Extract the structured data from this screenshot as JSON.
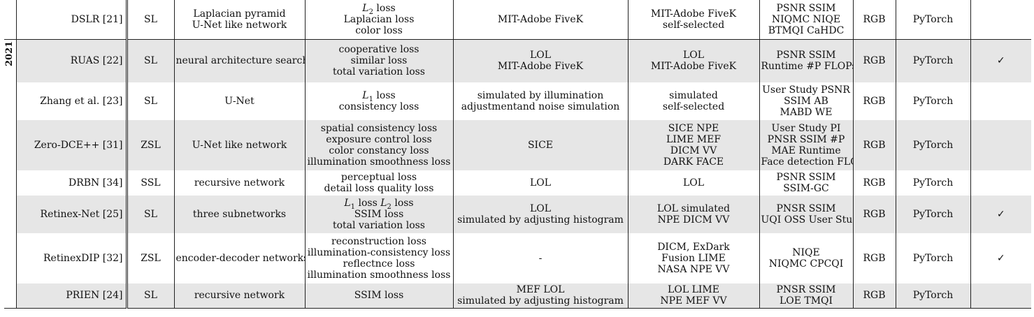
{
  "table": {
    "year_label": "2021",
    "rows": [
      {
        "method": "DSLR [21]",
        "type": "SL",
        "arch": [
          "Laplacian pyramid",
          "U-Net like network"
        ],
        "loss": [
          "L2 loss",
          "Laplacian loss",
          "color loss"
        ],
        "train": [
          "MIT-Adobe FiveK"
        ],
        "test": [
          "MIT-Adobe FiveK",
          "self-selected"
        ],
        "metrics": [
          "PSNR SSIM",
          "NIQMC NIQE",
          "BTMQI CaHDC"
        ],
        "format": "RGB",
        "platform": "PyTorch",
        "check": "",
        "shaded": false
      },
      {
        "method": "RUAS [22]",
        "type": "SL",
        "arch": [
          "neural architecture search"
        ],
        "loss": [
          "cooperative loss",
          "similar loss",
          "total variation loss"
        ],
        "train": [
          "LOL",
          "MIT-Adobe FiveK"
        ],
        "test": [
          "LOL",
          "MIT-Adobe FiveK"
        ],
        "metrics": [
          "PSNR SSIM",
          "Runtime #P FLOPs"
        ],
        "format": "RGB",
        "platform": "PyTorch",
        "check": "✓",
        "shaded": true
      },
      {
        "method": "Zhang et al. [23]",
        "type": "SL",
        "arch": [
          "U-Net"
        ],
        "loss": [
          "L1 loss",
          "consistency loss"
        ],
        "train": [
          "simulated by illumination",
          "adjustmentand noise simulation"
        ],
        "test": [
          "simulated",
          "self-selected"
        ],
        "metrics": [
          "User Study PSNR",
          "SSIM AB",
          "MABD WE"
        ],
        "format": "RGB",
        "platform": "PyTorch",
        "check": "",
        "shaded": false
      },
      {
        "method": "Zero-DCE++ [31]",
        "type": "ZSL",
        "arch": [
          "U-Net like network"
        ],
        "loss": [
          "spatial consistency loss",
          "exposure control loss",
          "color constancy loss",
          "illumination smoothness loss"
        ],
        "train": [
          "SICE"
        ],
        "test": [
          "SICE NPE",
          "LIME MEF",
          "DICM VV",
          "DARK FACE"
        ],
        "metrics": [
          "User Study PI",
          "PNSR SSIM #P",
          "MAE Runtime",
          "Face detection FLOPs"
        ],
        "format": "RGB",
        "platform": "PyTorch",
        "check": "",
        "shaded": true
      },
      {
        "method": "DRBN [34]",
        "type": "SSL",
        "arch": [
          "recursive network"
        ],
        "loss": [
          "perceptual loss",
          "detail loss quality loss"
        ],
        "train": [
          "LOL"
        ],
        "test": [
          "LOL"
        ],
        "metrics": [
          "PSNR SSIM",
          "SSIM-GC"
        ],
        "format": "RGB",
        "platform": "PyTorch",
        "check": "",
        "shaded": false
      },
      {
        "method": "Retinex-Net [25]",
        "type": "SL",
        "arch": [
          "three subnetworks"
        ],
        "loss": [
          "L1 loss L2 loss",
          "SSIM loss",
          "total variation loss"
        ],
        "train": [
          "LOL",
          "simulated by adjusting histogram"
        ],
        "test": [
          "LOL simulated",
          "NPE DICM VV"
        ],
        "metrics": [
          "PNSR SSIM",
          "UQI OSS User Study"
        ],
        "format": "RGB",
        "platform": "PyTorch",
        "check": "✓",
        "shaded": true
      },
      {
        "method": "RetinexDIP [32]",
        "type": "ZSL",
        "arch": [
          "encoder-decoder networks"
        ],
        "loss": [
          "reconstruction loss",
          "illumination-consistency loss",
          "reflectnce loss",
          "illumination smoothness loss"
        ],
        "train": [
          "-"
        ],
        "test": [
          "DICM, ExDark",
          "Fusion LIME",
          "NASA NPE VV"
        ],
        "metrics": [
          "NIQE",
          "NIQMC CPCQI"
        ],
        "format": "RGB",
        "platform": "PyTorch",
        "check": "✓",
        "shaded": false
      },
      {
        "method": "PRIEN [24]",
        "type": "SL",
        "arch": [
          "recursive network"
        ],
        "loss": [
          "SSIM loss"
        ],
        "train": [
          "MEF LOL",
          "simulated by adjusting histogram"
        ],
        "test": [
          "LOL LIME",
          "NPE MEF VV"
        ],
        "metrics": [
          "PNSR SSIM",
          "LOE TMQI"
        ],
        "format": "RGB",
        "platform": "PyTorch",
        "check": "",
        "shaded": true
      }
    ]
  }
}
